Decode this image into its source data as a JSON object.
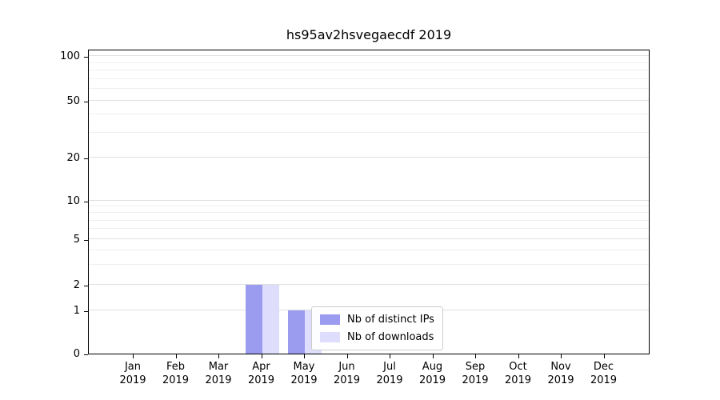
{
  "chart_data": {
    "type": "bar",
    "title": "hs95av2hsvegaecdf 2019",
    "categories": [
      "Jan",
      "Feb",
      "Mar",
      "Apr",
      "May",
      "Jun",
      "Jul",
      "Aug",
      "Sep",
      "Oct",
      "Nov",
      "Dec"
    ],
    "year": "2019",
    "series": [
      {
        "name": "Nb of distinct IPs",
        "color": "#9b9bef",
        "values": [
          0,
          0,
          0,
          2,
          1,
          0,
          0,
          0,
          0,
          0,
          0,
          0
        ]
      },
      {
        "name": "Nb of downloads",
        "color": "#dedefc",
        "values": [
          0,
          0,
          0,
          2,
          1,
          0,
          0,
          0,
          0,
          0,
          0,
          0
        ]
      }
    ],
    "y_ticks": [
      0,
      1,
      2,
      5,
      10,
      20,
      50,
      100
    ],
    "y_minor_ticks": [
      3,
      4,
      6,
      7,
      8,
      9,
      30,
      40,
      60,
      70,
      80,
      90
    ],
    "yscale": "symlog",
    "ylim": [
      0,
      110
    ],
    "grid": true,
    "legend_position": "lower center"
  }
}
